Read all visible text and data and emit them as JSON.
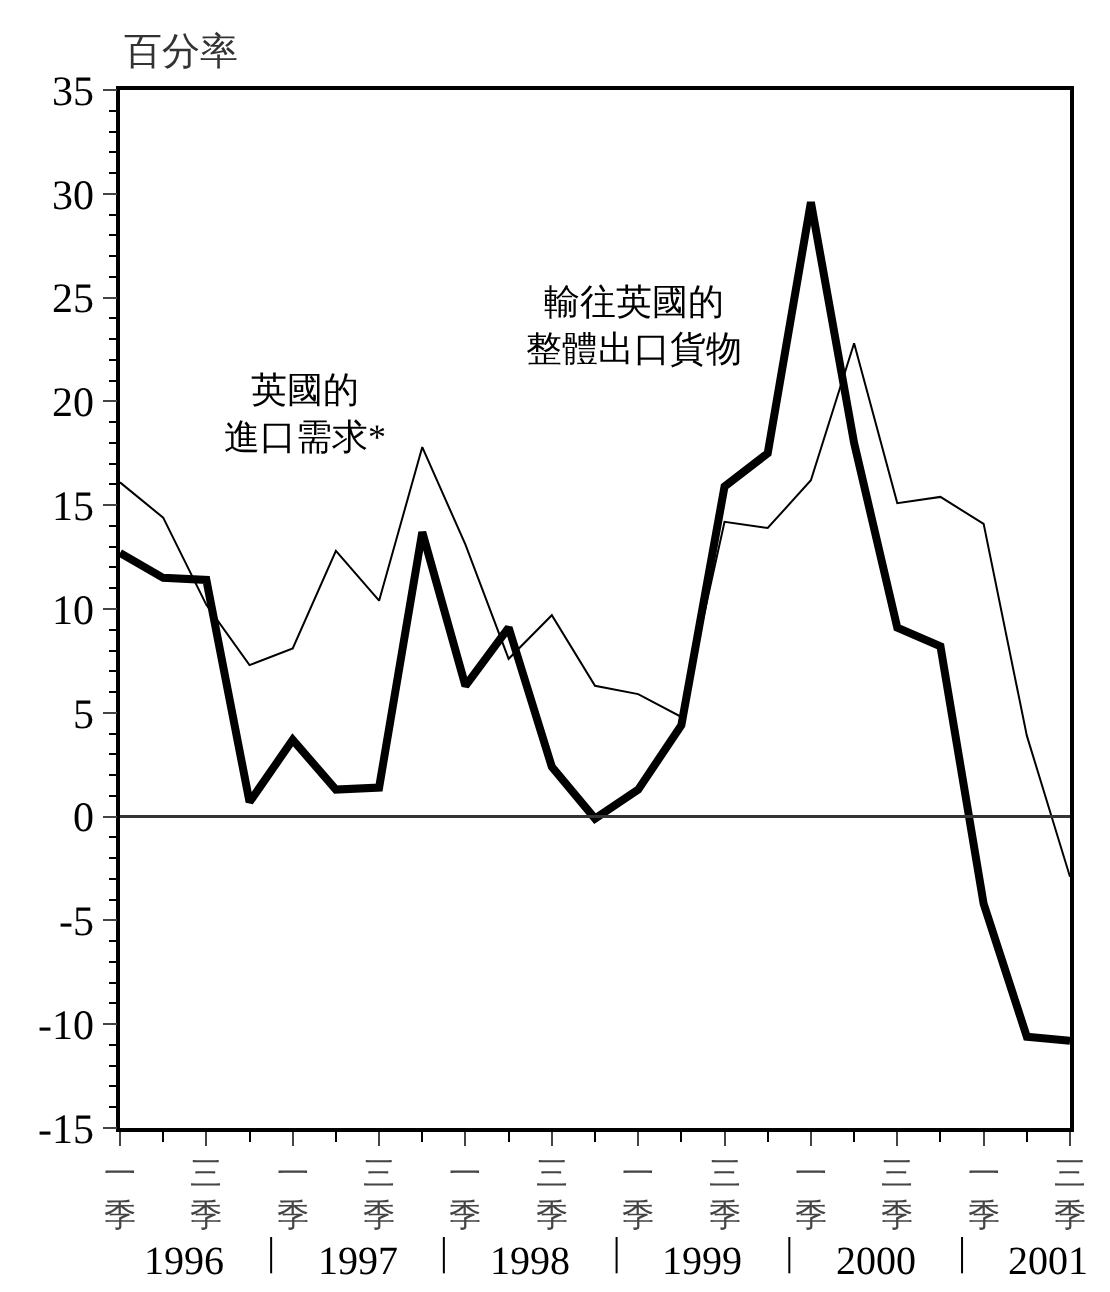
{
  "chart_data": {
    "type": "line",
    "ylabel": "百分率",
    "categories": [
      "一季",
      null,
      "三季",
      null,
      "一季",
      null,
      "三季",
      null,
      "一季",
      null,
      "三季",
      null,
      "一季",
      null,
      "三季",
      null,
      "一季",
      null,
      "三季",
      null,
      "一季",
      null,
      "三季"
    ],
    "series": [
      {
        "name": "輸往英國的整體出口貨物",
        "color": "#000000",
        "values": [
          12.7,
          11.5,
          11.4,
          0.7,
          3.7,
          1.3,
          1.4,
          13.7,
          6.3,
          9.1,
          2.4,
          -0.1,
          1.3,
          4.4,
          15.9,
          17.5,
          29.6,
          18.0,
          9.1,
          8.2,
          -4.2,
          -10.6,
          -10.8
        ]
      },
      {
        "name": "英國的進口需求*",
        "color": "#000000",
        "values": [
          16.1,
          14.4,
          10.2,
          7.3,
          8.1,
          12.8,
          10.4,
          17.8,
          13.1,
          7.6,
          9.7,
          6.3,
          5.9,
          4.8,
          14.2,
          13.9,
          16.2,
          22.8,
          15.1,
          15.4,
          14.1,
          3.9,
          -2.9
        ]
      }
    ],
    "annotations": [
      "1996",
      "1997",
      "1998",
      "1999",
      "2000",
      "2001"
    ],
    "ylim": [
      -15,
      35
    ],
    "yticks": [
      -15,
      -10,
      -5,
      0,
      5,
      10,
      15,
      20,
      25,
      30,
      35
    ],
    "ref_lines": [
      {
        "axis": "y",
        "value": 0,
        "color": "#333333"
      }
    ],
    "legend": false,
    "marker": "none",
    "line_style": "solid"
  }
}
